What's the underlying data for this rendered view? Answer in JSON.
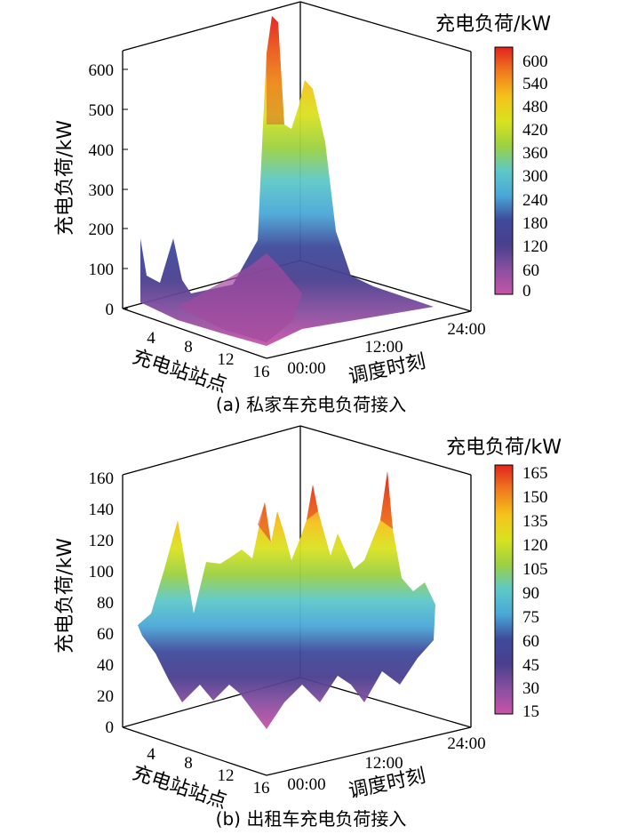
{
  "chart_data": [
    {
      "type": "surface",
      "caption": "(a)  私家车充电负荷接入",
      "zlabel": "充电负荷/kW",
      "xlabel": "充电站站点",
      "ylabel": "调度时刻",
      "colorbar_title": "充电负荷/kW",
      "zlim": [
        0,
        650
      ],
      "z_ticks": [
        0,
        100,
        200,
        300,
        400,
        500,
        600
      ],
      "x_ticks": [
        "4",
        "8",
        "12",
        "16"
      ],
      "y_ticks": [
        "00:00",
        "12:00",
        "24:00"
      ],
      "colorbar_ticks": [
        0,
        60,
        120,
        180,
        240,
        300,
        360,
        420,
        480,
        540,
        600
      ],
      "colorbar_range": [
        0,
        630
      ],
      "peak_ridge_values": [
        0,
        5,
        10,
        30,
        200,
        600,
        560,
        300,
        80,
        20,
        5,
        0
      ]
    },
    {
      "type": "surface",
      "caption": "(b)  出租车充电负荷接入",
      "zlabel": "充电负荷/kW",
      "xlabel": "充电站站点",
      "ylabel": "调度时刻",
      "colorbar_title": "充电负荷/kW",
      "zlim": [
        0,
        160
      ],
      "z_ticks": [
        0,
        20,
        40,
        60,
        80,
        100,
        120,
        140,
        160
      ],
      "x_ticks": [
        "4",
        "8",
        "12",
        "16"
      ],
      "y_ticks": [
        "00:00",
        "12:00",
        "24:00"
      ],
      "colorbar_ticks": [
        15,
        30,
        45,
        60,
        75,
        90,
        105,
        120,
        135,
        150,
        165
      ],
      "colorbar_range": [
        10,
        170
      ],
      "profile_values": [
        65,
        55,
        45,
        130,
        60,
        40,
        110,
        105,
        60,
        145,
        20,
        140,
        70,
        150,
        30,
        95,
        155,
        70,
        60,
        65
      ]
    }
  ],
  "colors": {
    "colormap": [
      "#c854a8",
      "#8a4fa0",
      "#4a3f8f",
      "#3e4a9a",
      "#4aa7d8",
      "#5dc8c8",
      "#9bd142",
      "#d9e21f",
      "#f5c21b",
      "#f07b1e",
      "#e2231f"
    ]
  }
}
